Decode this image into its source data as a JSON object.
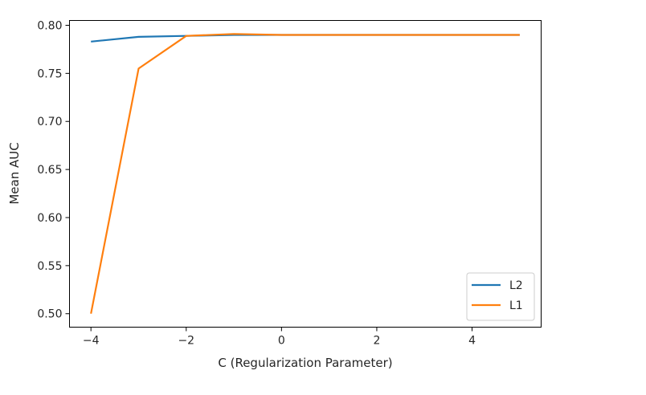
{
  "chart_data": {
    "type": "line",
    "title": "",
    "xlabel": "C (Regularization Parameter)",
    "ylabel": "Mean AUC",
    "xlim": [
      -4.45,
      5.45
    ],
    "ylim": [
      0.486,
      0.805
    ],
    "xticks": [
      -4,
      -2,
      0,
      2,
      4
    ],
    "xtick_labels": [
      "−4",
      "−2",
      "0",
      "2",
      "4"
    ],
    "yticks": [
      0.5,
      0.55,
      0.6,
      0.65,
      0.7,
      0.75,
      0.8
    ],
    "ytick_labels": [
      "0.50",
      "0.55",
      "0.60",
      "0.65",
      "0.70",
      "0.75",
      "0.80"
    ],
    "grid": false,
    "legend_position": "lower-right",
    "x": [
      -4,
      -3,
      -2,
      -1,
      0,
      1,
      2,
      3,
      4,
      5
    ],
    "series": [
      {
        "name": "L2",
        "color": "#1f77b4",
        "values": [
          0.783,
          0.788,
          0.789,
          0.79,
          0.79,
          0.79,
          0.79,
          0.79,
          0.79,
          0.79
        ]
      },
      {
        "name": "L1",
        "color": "#ff7f0e",
        "values": [
          0.5,
          0.755,
          0.789,
          0.791,
          0.79,
          0.79,
          0.79,
          0.79,
          0.79,
          0.79
        ]
      }
    ]
  }
}
